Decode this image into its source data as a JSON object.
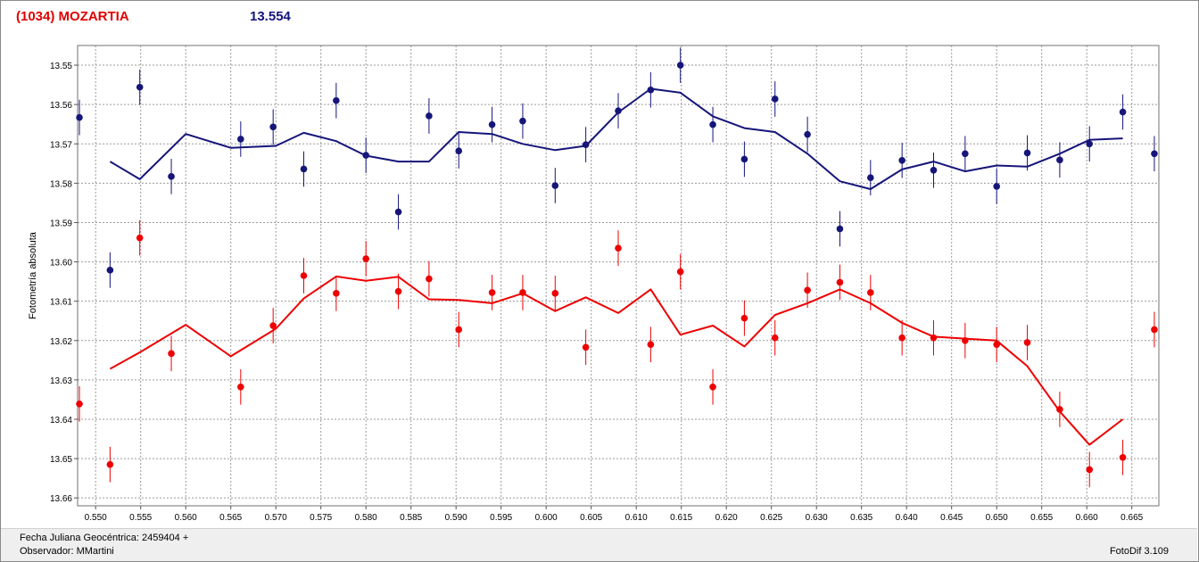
{
  "title": "(1034) MOZARTIA",
  "reference_mag": "13.554",
  "footer": {
    "date_line": "Fecha Juliana Geocéntrica: 2459404 +",
    "observer_line": "Observador: MMartini",
    "version": "FotoDif 3.109"
  },
  "colors": {
    "title": "#e00000",
    "reference_mag": "#15157a",
    "blue_series": "#15157a",
    "red_series": "#ee0000",
    "grid": "#9a9a9a"
  },
  "chart_data": {
    "type": "scatter",
    "xlabel": "",
    "ylabel": "Fotometría absoluta",
    "xlim": [
      0.548,
      0.668
    ],
    "ylim": [
      13.545,
      13.662
    ],
    "y_inverted": true,
    "grid": true,
    "legend": "none",
    "x_ticks": [
      "0.550",
      "0.555",
      "0.560",
      "0.565",
      "0.570",
      "0.575",
      "0.580",
      "0.585",
      "0.590",
      "0.595",
      "0.600",
      "0.605",
      "0.610",
      "0.615",
      "0.620",
      "0.625",
      "0.630",
      "0.635",
      "0.640",
      "0.645",
      "0.650",
      "0.655",
      "0.660",
      "0.665"
    ],
    "y_ticks": [
      "13.55",
      "13.56",
      "13.57",
      "13.58",
      "13.59",
      "13.60",
      "13.61",
      "13.62",
      "13.63",
      "13.64",
      "13.65",
      "13.66"
    ],
    "series": [
      {
        "color": "#15157a",
        "points": [
          {
            "x": 0.5482,
            "y": 13.5633,
            "err": 0.0045
          },
          {
            "x": 0.5516,
            "y": 13.6021,
            "err": 0.0045
          },
          {
            "x": 0.5549,
            "y": 13.5556,
            "err": 0.0045
          },
          {
            "x": 0.5584,
            "y": 13.5783,
            "err": 0.0045
          },
          {
            "x": 0.5661,
            "y": 13.5688,
            "err": 0.0045
          },
          {
            "x": 0.5697,
            "y": 13.5657,
            "err": 0.0045
          },
          {
            "x": 0.5731,
            "y": 13.5764,
            "err": 0.0045
          },
          {
            "x": 0.5767,
            "y": 13.559,
            "err": 0.0045
          },
          {
            "x": 0.58,
            "y": 13.5729,
            "err": 0.0045
          },
          {
            "x": 0.5836,
            "y": 13.5873,
            "err": 0.0045
          },
          {
            "x": 0.587,
            "y": 13.5629,
            "err": 0.0045
          },
          {
            "x": 0.5903,
            "y": 13.5718,
            "err": 0.0045
          },
          {
            "x": 0.594,
            "y": 13.5651,
            "err": 0.0045
          },
          {
            "x": 0.5974,
            "y": 13.5642,
            "err": 0.0045
          },
          {
            "x": 0.601,
            "y": 13.5806,
            "err": 0.0045
          },
          {
            "x": 0.6044,
            "y": 13.5702,
            "err": 0.0045
          },
          {
            "x": 0.608,
            "y": 13.5616,
            "err": 0.0045
          },
          {
            "x": 0.6116,
            "y": 13.5563,
            "err": 0.0045
          },
          {
            "x": 0.6149,
            "y": 13.55,
            "err": 0.0045
          },
          {
            "x": 0.6185,
            "y": 13.5651,
            "err": 0.0045
          },
          {
            "x": 0.622,
            "y": 13.5739,
            "err": 0.0045
          },
          {
            "x": 0.6254,
            "y": 13.5586,
            "err": 0.0045
          },
          {
            "x": 0.629,
            "y": 13.5676,
            "err": 0.0045
          },
          {
            "x": 0.6326,
            "y": 13.5916,
            "err": 0.0045
          },
          {
            "x": 0.636,
            "y": 13.5786,
            "err": 0.0045
          },
          {
            "x": 0.6395,
            "y": 13.5742,
            "err": 0.0045
          },
          {
            "x": 0.643,
            "y": 13.5767,
            "err": 0.0045
          },
          {
            "x": 0.6465,
            "y": 13.5725,
            "err": 0.0045
          },
          {
            "x": 0.65,
            "y": 13.5808,
            "err": 0.0045
          },
          {
            "x": 0.6534,
            "y": 13.5723,
            "err": 0.0045
          },
          {
            "x": 0.657,
            "y": 13.5741,
            "err": 0.0045
          },
          {
            "x": 0.6603,
            "y": 13.57,
            "err": 0.0045
          },
          {
            "x": 0.664,
            "y": 13.5619,
            "err": 0.0045
          },
          {
            "x": 0.6675,
            "y": 13.5725,
            "err": 0.0045
          }
        ],
        "trend": {
          "x": [
            0.5516,
            0.5549,
            0.56,
            0.565,
            0.57,
            0.5731,
            0.5767,
            0.58,
            0.5836,
            0.587,
            0.5903,
            0.594,
            0.5974,
            0.601,
            0.6044,
            0.608,
            0.6116,
            0.6149,
            0.6185,
            0.622,
            0.6254,
            0.629,
            0.6326,
            0.636,
            0.6395,
            0.643,
            0.6465,
            0.65,
            0.6534,
            0.657,
            0.6603,
            0.664
          ],
          "y": [
            13.5745,
            13.579,
            13.5675,
            13.571,
            13.5705,
            13.5672,
            13.5693,
            13.573,
            13.5745,
            13.5745,
            13.567,
            13.5675,
            13.57,
            13.5716,
            13.5705,
            13.562,
            13.556,
            13.557,
            13.563,
            13.566,
            13.567,
            13.5725,
            13.5795,
            13.5815,
            13.5765,
            13.5745,
            13.577,
            13.5755,
            13.5758,
            13.5725,
            13.569,
            13.5686
          ]
        }
      },
      {
        "color": "#ee0000",
        "points": [
          {
            "x": 0.5482,
            "y": 13.6361,
            "err": 0.0045
          },
          {
            "x": 0.5516,
            "y": 13.6515,
            "err": 0.0045
          },
          {
            "x": 0.5549,
            "y": 13.5939,
            "err": 0.0045
          },
          {
            "x": 0.5584,
            "y": 13.6233,
            "err": 0.0045
          },
          {
            "x": 0.5661,
            "y": 13.6318,
            "err": 0.0045
          },
          {
            "x": 0.5697,
            "y": 13.6162,
            "err": 0.0045
          },
          {
            "x": 0.5731,
            "y": 13.6035,
            "err": 0.0045
          },
          {
            "x": 0.5767,
            "y": 13.608,
            "err": 0.0045
          },
          {
            "x": 0.58,
            "y": 13.5992,
            "err": 0.0045
          },
          {
            "x": 0.5836,
            "y": 13.6075,
            "err": 0.0045
          },
          {
            "x": 0.587,
            "y": 13.6043,
            "err": 0.0045
          },
          {
            "x": 0.5903,
            "y": 13.6172,
            "err": 0.0045
          },
          {
            "x": 0.594,
            "y": 13.6078,
            "err": 0.0045
          },
          {
            "x": 0.5974,
            "y": 13.6078,
            "err": 0.0045
          },
          {
            "x": 0.601,
            "y": 13.608,
            "err": 0.0045
          },
          {
            "x": 0.6044,
            "y": 13.6217,
            "err": 0.0045
          },
          {
            "x": 0.608,
            "y": 13.5965,
            "err": 0.0045
          },
          {
            "x": 0.6116,
            "y": 13.621,
            "err": 0.0045
          },
          {
            "x": 0.6149,
            "y": 13.6025,
            "err": 0.0045
          },
          {
            "x": 0.6185,
            "y": 13.6318,
            "err": 0.0045
          },
          {
            "x": 0.622,
            "y": 13.6143,
            "err": 0.0045
          },
          {
            "x": 0.6254,
            "y": 13.6193,
            "err": 0.0045
          },
          {
            "x": 0.629,
            "y": 13.6072,
            "err": 0.0045
          },
          {
            "x": 0.6326,
            "y": 13.6052,
            "err": 0.0045
          },
          {
            "x": 0.636,
            "y": 13.6078,
            "err": 0.0045
          },
          {
            "x": 0.6395,
            "y": 13.6193,
            "err": 0.0045
          },
          {
            "x": 0.643,
            "y": 13.6193,
            "err": 0.0045
          },
          {
            "x": 0.6465,
            "y": 13.62,
            "err": 0.0045
          },
          {
            "x": 0.65,
            "y": 13.621,
            "err": 0.0045
          },
          {
            "x": 0.6534,
            "y": 13.6205,
            "err": 0.0045
          },
          {
            "x": 0.657,
            "y": 13.6375,
            "err": 0.0045
          },
          {
            "x": 0.6603,
            "y": 13.6528,
            "err": 0.0045
          },
          {
            "x": 0.664,
            "y": 13.6497,
            "err": 0.0045
          },
          {
            "x": 0.6675,
            "y": 13.6172,
            "err": 0.0045
          }
        ],
        "trend": {
          "x": [
            0.5516,
            0.5549,
            0.56,
            0.565,
            0.57,
            0.5731,
            0.5767,
            0.58,
            0.5836,
            0.587,
            0.5903,
            0.594,
            0.5974,
            0.601,
            0.6044,
            0.608,
            0.6116,
            0.6149,
            0.6185,
            0.622,
            0.6254,
            0.629,
            0.6326,
            0.636,
            0.6395,
            0.643,
            0.6465,
            0.65,
            0.6534,
            0.657,
            0.6603,
            0.664
          ],
          "y": [
            13.6272,
            13.623,
            13.616,
            13.624,
            13.617,
            13.6093,
            13.6037,
            13.6048,
            13.6038,
            13.6095,
            13.6097,
            13.6105,
            13.608,
            13.6125,
            13.609,
            13.613,
            13.607,
            13.6185,
            13.6162,
            13.6215,
            13.6135,
            13.6105,
            13.607,
            13.6105,
            13.6155,
            13.619,
            13.6195,
            13.62,
            13.6265,
            13.638,
            13.6465,
            13.64
          ]
        }
      }
    ]
  }
}
